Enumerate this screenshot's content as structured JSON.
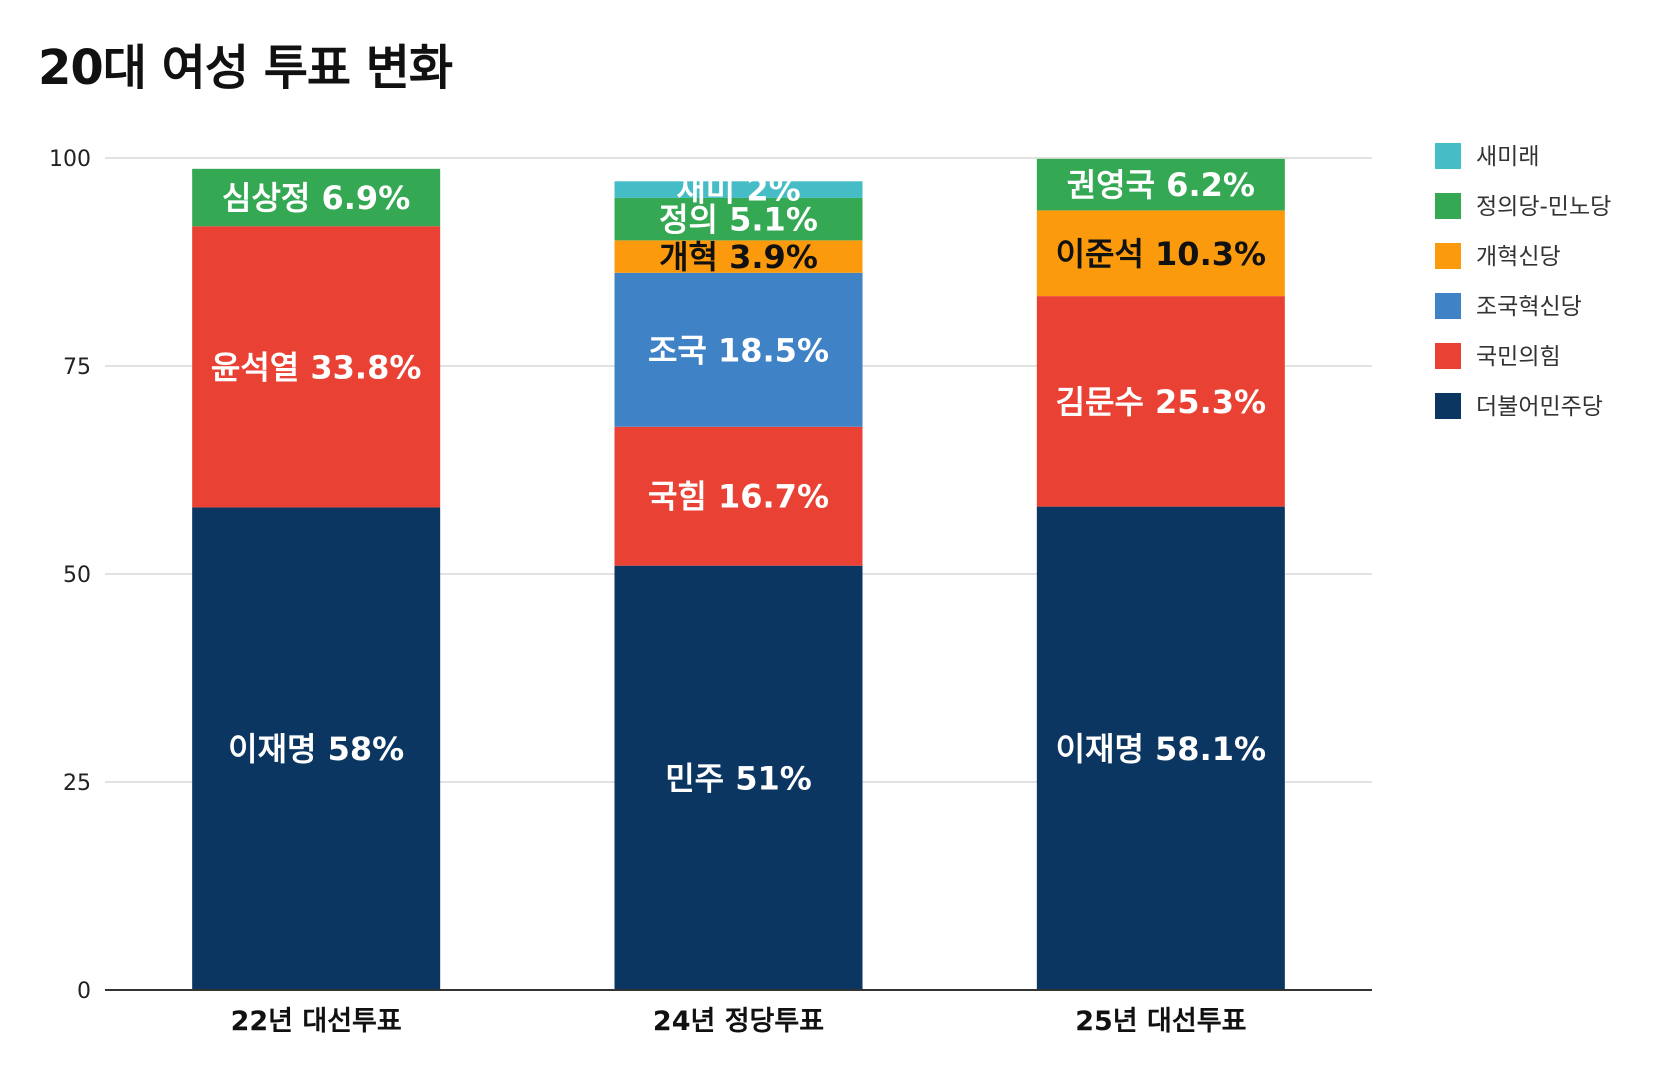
{
  "title": "20대 여성 투표 변화",
  "chart_data": {
    "type": "bar",
    "stacked": true,
    "title": "20대 여성 투표 변화",
    "xlabel": "",
    "ylabel": "",
    "ylim": [
      0,
      100
    ],
    "yticks": [
      0,
      25,
      50,
      75,
      100
    ],
    "grid": true,
    "legend_position": "right",
    "categories": [
      "22년 대선투표",
      "24년 정당투표",
      "25년 대선투표"
    ],
    "series": [
      {
        "name": "더불어민주당",
        "color": "#0b3661",
        "values": [
          58,
          51,
          58.1
        ],
        "labels": [
          "이재명 58%",
          "민주 51%",
          "이재명 58.1%"
        ],
        "label_color": "#ffffff"
      },
      {
        "name": "국민의힘",
        "color": "#e94235",
        "values": [
          33.8,
          16.7,
          25.3
        ],
        "labels": [
          "윤석열 33.8%",
          "국힘 16.7%",
          "김문수 25.3%"
        ],
        "label_color": "#ffffff"
      },
      {
        "name": "조국혁신당",
        "color": "#3f82c6",
        "values": [
          0,
          18.5,
          0
        ],
        "labels": [
          "",
          "조국 18.5%",
          ""
        ],
        "label_color": "#ffffff"
      },
      {
        "name": "개혁신당",
        "color": "#fb9a0c",
        "values": [
          0,
          3.9,
          10.3
        ],
        "labels": [
          "",
          "개혁 3.9%",
          "이준석 10.3%"
        ],
        "label_color": "#111111"
      },
      {
        "name": "정의당-민노당",
        "color": "#34a853",
        "values": [
          6.9,
          5.1,
          6.2
        ],
        "labels": [
          "심상정 6.9%",
          "정의 5.1%",
          "권영국 6.2%"
        ],
        "label_color": "#ffffff"
      },
      {
        "name": "새미래",
        "color": "#46bdc6",
        "values": [
          0,
          2,
          0
        ],
        "labels": [
          "",
          "새미 2%",
          ""
        ],
        "label_color": "#ffffff"
      }
    ]
  }
}
